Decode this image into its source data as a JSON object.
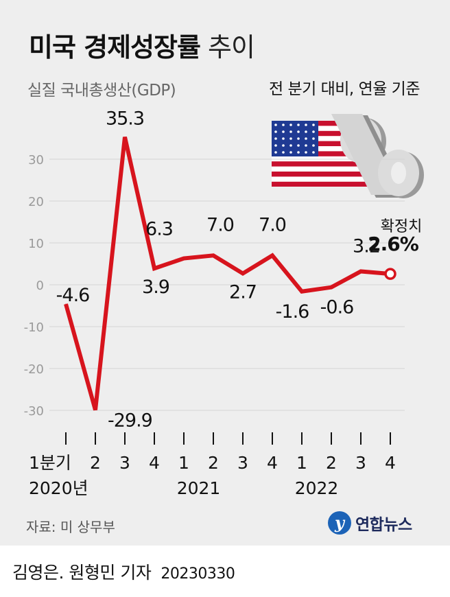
{
  "title": {
    "bold": "미국 경제성장률",
    "light": "추이"
  },
  "subtitle": "실질 국내총생산(GDP)",
  "basis_note": "전 분기 대비, 연율 기준",
  "final_note": "확정치",
  "final_value_label": "2.6%",
  "source": "자료: 미 상무부",
  "logo": {
    "mark": "y",
    "name": "연합뉴스"
  },
  "credit": {
    "authors": "김영은. 원형민 기자",
    "date": "20230330"
  },
  "colors": {
    "line": "#d7141d",
    "background": "#eeeeee",
    "grid": "#d4d4d4",
    "flag_red": "#c8102e",
    "flag_blue": "#1f3a93"
  },
  "icons": [
    "us-flag-icon",
    "percent-icon",
    "yonhap-logo-icon"
  ],
  "chart_data": {
    "type": "line",
    "categories": [
      "1분기",
      "2",
      "3",
      "4",
      "1",
      "2",
      "3",
      "4",
      "1",
      "2",
      "3",
      "4"
    ],
    "year_labels": [
      {
        "label": "2020년",
        "index": 0
      },
      {
        "label": "2021",
        "index": 5
      },
      {
        "label": "2022",
        "index": 9
      }
    ],
    "values": [
      -4.6,
      -29.9,
      35.3,
      3.9,
      6.3,
      7.0,
      2.7,
      7.0,
      -1.6,
      -0.6,
      3.2,
      2.6
    ],
    "value_labels": [
      "-4.6",
      "-29.9",
      "35.3",
      "3.9",
      "6.3",
      "7.0",
      "2.7",
      "7.0",
      "-1.6",
      "-0.6",
      "3.2",
      "2.6%"
    ],
    "yticks": [
      30,
      20,
      10,
      0,
      -10,
      -20,
      -30
    ],
    "ylim": [
      -30,
      35.3
    ],
    "grid": true,
    "last_point_marker": "open-circle"
  }
}
